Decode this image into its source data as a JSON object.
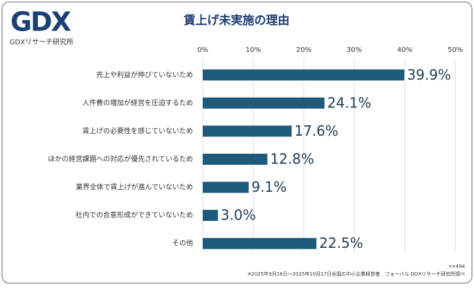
{
  "logo": {
    "mark": "GDX",
    "name": "GDXリサーチ研究所"
  },
  "chart_data": {
    "type": "bar",
    "orientation": "horizontal",
    "title": "賃上げ未実施の理由",
    "categories": [
      "売上や利益が伸びていないため",
      "人件費の増加が経営を圧迫するため",
      "賃上げの必要性を感じていないため",
      "ほかの経営課題への対応が優先されているため",
      "業界全体で賃上げが進んでいないため",
      "社内での合意形成ができていないため",
      "その他"
    ],
    "values": [
      39.9,
      24.1,
      17.6,
      12.8,
      9.1,
      3.0,
      22.5
    ],
    "value_labels": [
      "39.9%",
      "24.1%",
      "17.6%",
      "12.8%",
      "9.1%",
      "3.0%",
      "22.5%"
    ],
    "color": "#1e5a7c",
    "xlim": [
      0,
      50
    ],
    "xticks": [
      {
        "value": 0,
        "label": "0%"
      },
      {
        "value": 10,
        "label": "10%"
      },
      {
        "value": 20,
        "label": "20%"
      },
      {
        "value": 30,
        "label": "30%"
      },
      {
        "value": 40,
        "label": "40%"
      },
      {
        "value": 50,
        "label": "50%"
      }
    ],
    "grid": true
  },
  "notes": [
    "n=494",
    "※2025年9月16日～2025年10月17日全国の中小企業経営者　フォーバル GDXリサーチ研究所調べ"
  ]
}
